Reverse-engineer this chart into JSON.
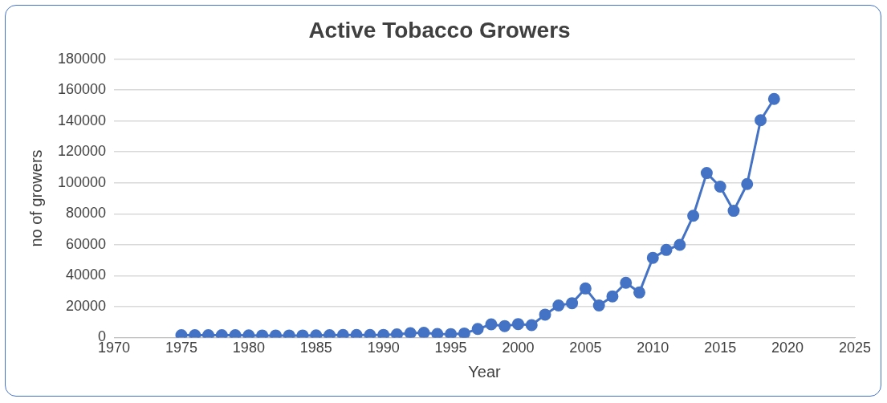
{
  "chart_data": {
    "type": "line",
    "title": "Active Tobacco Growers",
    "xlabel": "Year",
    "ylabel": "no of growers",
    "x": [
      1975,
      1976,
      1977,
      1978,
      1979,
      1980,
      1981,
      1982,
      1983,
      1984,
      1985,
      1986,
      1987,
      1988,
      1989,
      1990,
      1991,
      1992,
      1993,
      1994,
      1995,
      1996,
      1997,
      1998,
      1999,
      2000,
      2001,
      2002,
      2003,
      2004,
      2005,
      2006,
      2007,
      2008,
      2009,
      2010,
      2011,
      2012,
      2013,
      2014,
      2015,
      2016,
      2017,
      2018,
      2019
    ],
    "series": [
      {
        "color": "#4472c4",
        "values": [
          1500,
          1500,
          1500,
          1500,
          1500,
          1400,
          1300,
          1300,
          1300,
          1300,
          1400,
          1500,
          1600,
          1600,
          1600,
          1700,
          2000,
          2800,
          3000,
          2300,
          2200,
          2600,
          5500,
          8500,
          7400,
          8700,
          8000,
          14800,
          20700,
          22200,
          31700,
          20700,
          26600,
          35400,
          29100,
          51500,
          56600,
          59900,
          78700,
          106300,
          97500,
          81900,
          99200,
          140500,
          154200
        ]
      }
    ],
    "xlim": [
      1970,
      2025
    ],
    "xticks": [
      1970,
      1975,
      1980,
      1985,
      1990,
      1995,
      2000,
      2005,
      2010,
      2015,
      2020,
      2025
    ],
    "ylim": [
      0,
      180000
    ],
    "yticks": [
      0,
      20000,
      40000,
      60000,
      80000,
      100000,
      120000,
      140000,
      160000,
      180000
    ],
    "grid": "y",
    "legend": false,
    "marker": "circle",
    "line_style": "solid"
  }
}
